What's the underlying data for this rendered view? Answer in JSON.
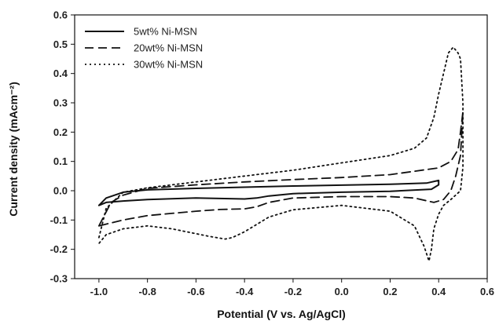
{
  "chart_data": {
    "type": "line",
    "title": "",
    "xlabel": "Potential (V vs. Ag/AgCl)",
    "ylabel": "Current density (mAcm⁻²)",
    "xlim": [
      -1.1,
      0.6
    ],
    "ylim": [
      -0.3,
      0.6
    ],
    "xticks": [
      -1.0,
      -0.8,
      -0.6,
      -0.4,
      -0.2,
      0.0,
      0.2,
      0.4,
      0.6
    ],
    "xtick_labels": [
      "-1.0",
      "-0.8",
      "-0.6",
      "-0.4",
      "-0.2",
      "0.0",
      "0.2",
      "0.4",
      "0.6"
    ],
    "yticks": [
      -0.3,
      -0.2,
      -0.1,
      0.0,
      0.1,
      0.2,
      0.3,
      0.4,
      0.5,
      0.6
    ],
    "ytick_labels": [
      "-0.3",
      "-0.2",
      "-0.1",
      "0.0",
      "0.1",
      "0.2",
      "0.3",
      "0.4",
      "0.5",
      "0.6"
    ],
    "grid": false,
    "legend_position": "top-left",
    "series": [
      {
        "name": "5wt% Ni-MSN",
        "style": "solid",
        "color": "#111111",
        "x": [
          -1.0,
          -0.97,
          -0.9,
          -0.8,
          -0.6,
          -0.4,
          -0.2,
          0.0,
          0.2,
          0.35,
          0.4,
          0.4,
          0.37,
          0.2,
          0.0,
          -0.2,
          -0.3,
          -0.35,
          -0.4,
          -0.6,
          -0.8,
          -0.9,
          -0.97,
          -1.0
        ],
        "y": [
          -0.05,
          -0.025,
          -0.005,
          0.003,
          0.008,
          0.012,
          0.016,
          0.019,
          0.022,
          0.026,
          0.035,
          0.02,
          0.005,
          -0.002,
          -0.005,
          -0.01,
          -0.018,
          -0.025,
          -0.028,
          -0.025,
          -0.03,
          -0.035,
          -0.04,
          -0.05
        ]
      },
      {
        "name": "20wt% Ni-MSN",
        "style": "dashed",
        "color": "#111111",
        "x": [
          -1.0,
          -0.95,
          -0.9,
          -0.8,
          -0.6,
          -0.4,
          -0.2,
          0.0,
          0.2,
          0.4,
          0.45,
          0.48,
          0.49,
          0.5,
          0.49,
          0.47,
          0.45,
          0.42,
          0.38,
          0.3,
          0.2,
          0.0,
          -0.2,
          -0.3,
          -0.35,
          -0.4,
          -0.5,
          -0.6,
          -0.8,
          -0.9,
          -1.0
        ],
        "y": [
          -0.12,
          -0.04,
          -0.015,
          0.008,
          0.02,
          0.03,
          0.038,
          0.045,
          0.055,
          0.078,
          0.1,
          0.14,
          0.2,
          0.27,
          0.12,
          0.05,
          0.0,
          -0.03,
          -0.04,
          -0.025,
          -0.02,
          -0.02,
          -0.025,
          -0.04,
          -0.055,
          -0.062,
          -0.064,
          -0.07,
          -0.085,
          -0.1,
          -0.12
        ]
      },
      {
        "name": "30wt% Ni-MSN",
        "style": "dotted",
        "color": "#111111",
        "x": [
          -1.0,
          -0.97,
          -0.9,
          -0.8,
          -0.6,
          -0.4,
          -0.2,
          0.0,
          0.2,
          0.3,
          0.35,
          0.38,
          0.4,
          0.42,
          0.44,
          0.46,
          0.48,
          0.49,
          0.5,
          0.5,
          0.49,
          0.45,
          0.42,
          0.4,
          0.38,
          0.37,
          0.36,
          0.34,
          0.3,
          0.2,
          0.0,
          -0.2,
          -0.3,
          -0.4,
          -0.45,
          -0.48,
          -0.55,
          -0.7,
          -0.8,
          -0.9,
          -0.97,
          -1.0
        ],
        "y": [
          -0.16,
          -0.06,
          -0.005,
          0.01,
          0.03,
          0.05,
          0.07,
          0.095,
          0.12,
          0.145,
          0.18,
          0.25,
          0.33,
          0.4,
          0.47,
          0.49,
          0.47,
          0.45,
          0.3,
          0.08,
          0.0,
          -0.03,
          -0.05,
          -0.08,
          -0.13,
          -0.2,
          -0.24,
          -0.19,
          -0.12,
          -0.07,
          -0.05,
          -0.065,
          -0.09,
          -0.14,
          -0.16,
          -0.165,
          -0.155,
          -0.13,
          -0.12,
          -0.13,
          -0.15,
          -0.18
        ]
      }
    ]
  }
}
